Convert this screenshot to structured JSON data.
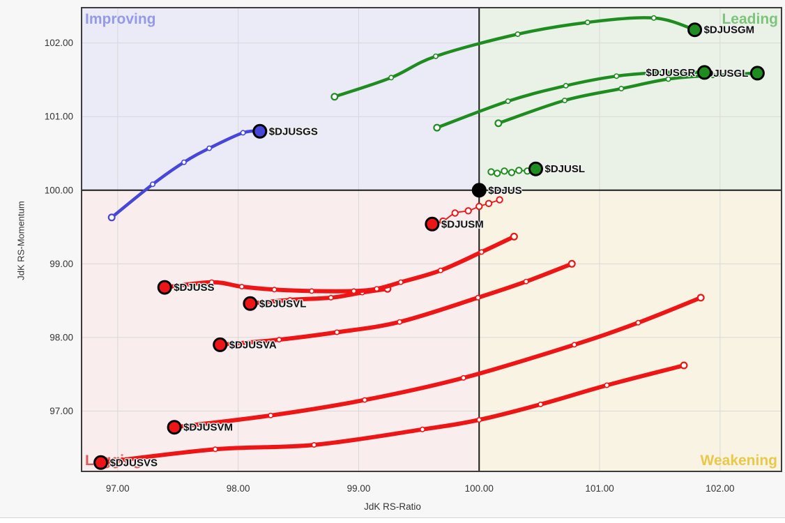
{
  "page": {
    "background": "#f7f7f7",
    "bottom_strip": "#ffffff"
  },
  "chart_data": {
    "type": "scatter",
    "chart_kind": "relative-rotation-graph",
    "x_axis": {
      "title": "JdK RS-Ratio",
      "range": [
        96.7,
        102.51
      ],
      "tick_values": [
        97,
        98,
        99,
        100,
        101,
        102
      ],
      "tick_labels": [
        "97.00",
        "98.00",
        "99.00",
        "100.00",
        "101.00",
        "102.00"
      ]
    },
    "y_axis": {
      "title": "JdK RS-Momentum",
      "range": [
        96.18,
        102.48
      ],
      "tick_values": [
        97,
        98,
        99,
        100,
        101,
        102
      ],
      "tick_labels": [
        "97.00",
        "98.00",
        "99.00",
        "100.00",
        "101.00",
        "102.00"
      ]
    },
    "center": {
      "x": 100,
      "y": 100
    },
    "grid_color": "#d8d8d8",
    "axis_text_color": "#333333",
    "border_color": "#3c3c3c",
    "crosshair_color": "#1a1a1a",
    "quadrants": {
      "improving": {
        "label": "Improving",
        "bg": "#ebebf8",
        "label_color": "#959ae6"
      },
      "leading": {
        "label": "Leading",
        "bg": "#eaf2e7",
        "label_color": "#7cc47c"
      },
      "lagging": {
        "label": "Lagging",
        "bg": "#f9eded",
        "label_color": "#de5a5a"
      },
      "weakening": {
        "label": "Weakening",
        "bg": "#f8f3e3",
        "label_color": "#e9c84b"
      }
    },
    "series": [
      {
        "symbol": "$DJUSGM",
        "color": "#1e8c1e",
        "line_width": 4.5,
        "tail_style": "solid",
        "label_side": "right",
        "points": [
          [
            98.8,
            101.27
          ],
          [
            99.27,
            101.53
          ],
          [
            99.64,
            101.82
          ],
          [
            100.32,
            102.12
          ],
          [
            100.9,
            102.28
          ],
          [
            101.45,
            102.34
          ],
          [
            101.79,
            102.18
          ]
        ]
      },
      {
        "symbol": "$DJUSGL",
        "color": "#1e8c1e",
        "line_width": 4.5,
        "tail_style": "solid",
        "label_side": "left",
        "points": [
          [
            100.16,
            100.91
          ],
          [
            100.71,
            101.22
          ],
          [
            101.18,
            101.38
          ],
          [
            101.57,
            101.51
          ],
          [
            101.94,
            101.56
          ],
          [
            102.31,
            101.59
          ]
        ]
      },
      {
        "symbol": "$DJUSGR",
        "color": "#1e8c1e",
        "line_width": 4.5,
        "tail_style": "solid",
        "label_side": "left",
        "points": [
          [
            99.65,
            100.85
          ],
          [
            100.24,
            101.21
          ],
          [
            100.72,
            101.42
          ],
          [
            101.14,
            101.55
          ],
          [
            101.52,
            101.6
          ],
          [
            101.87,
            101.6
          ]
        ]
      },
      {
        "symbol": "$DJUSGS",
        "color": "#4646d8",
        "line_width": 4.5,
        "tail_style": "solid",
        "label_side": "right",
        "points": [
          [
            96.95,
            99.63
          ],
          [
            97.29,
            100.08
          ],
          [
            97.55,
            100.38
          ],
          [
            97.76,
            100.57
          ],
          [
            98.04,
            100.78
          ],
          [
            98.18,
            100.8
          ]
        ]
      },
      {
        "symbol": "$DJUSL",
        "color": "#1e8c1e",
        "line_width": 2,
        "tail_style": "beads",
        "label_side": "right",
        "points": [
          [
            100.1,
            100.25
          ],
          [
            100.15,
            100.23
          ],
          [
            100.21,
            100.26
          ],
          [
            100.27,
            100.24
          ],
          [
            100.33,
            100.27
          ],
          [
            100.4,
            100.26
          ],
          [
            100.47,
            100.29
          ]
        ]
      },
      {
        "symbol": "$DJUSM",
        "color": "#ed1515",
        "line_width": 1.8,
        "tail_style": "beads",
        "label_side": "right",
        "points": [
          [
            100.17,
            99.87
          ],
          [
            100.08,
            99.82
          ],
          [
            100.0,
            99.78
          ],
          [
            99.91,
            99.72
          ],
          [
            99.8,
            99.69
          ],
          [
            99.7,
            99.58
          ],
          [
            99.61,
            99.54
          ]
        ]
      },
      {
        "symbol": "$DJUSVL",
        "color": "#ed1515",
        "line_width": 6,
        "tail_style": "solid",
        "label_side": "right",
        "points": [
          [
            99.24,
            98.66
          ],
          [
            99.03,
            98.61
          ],
          [
            98.77,
            98.54
          ],
          [
            98.43,
            98.51
          ],
          [
            98.1,
            98.46
          ]
        ]
      },
      {
        "symbol": "$DJUSS",
        "color": "#ed1515",
        "line_width": 6,
        "tail_style": "solid",
        "label_side": "right",
        "points": [
          [
            100.29,
            99.37
          ],
          [
            100.02,
            99.16
          ],
          [
            99.68,
            98.91
          ],
          [
            99.35,
            98.75
          ],
          [
            99.15,
            98.66
          ],
          [
            98.96,
            98.63
          ],
          [
            98.61,
            98.63
          ],
          [
            98.3,
            98.65
          ],
          [
            98.03,
            98.69
          ],
          [
            97.78,
            98.75
          ],
          [
            97.39,
            98.68
          ]
        ]
      },
      {
        "symbol": "$DJUSVA",
        "color": "#ed1515",
        "line_width": 6,
        "tail_style": "solid",
        "label_side": "right",
        "points": [
          [
            100.77,
            99.0
          ],
          [
            100.39,
            98.76
          ],
          [
            99.99,
            98.54
          ],
          [
            99.34,
            98.21
          ],
          [
            98.82,
            98.07
          ],
          [
            98.34,
            97.97
          ],
          [
            97.85,
            97.9
          ]
        ]
      },
      {
        "symbol": "$DJUSVM",
        "color": "#ed1515",
        "line_width": 6,
        "tail_style": "solid",
        "label_side": "right",
        "points": [
          [
            101.84,
            98.54
          ],
          [
            101.32,
            98.2
          ],
          [
            100.79,
            97.9
          ],
          [
            99.87,
            97.45
          ],
          [
            99.05,
            97.15
          ],
          [
            98.27,
            96.94
          ],
          [
            97.47,
            96.78
          ]
        ]
      },
      {
        "symbol": "$DJUSVS",
        "color": "#ed1515",
        "line_width": 6,
        "tail_style": "solid",
        "label_side": "right",
        "points": [
          [
            101.7,
            97.62
          ],
          [
            101.06,
            97.35
          ],
          [
            100.51,
            97.09
          ],
          [
            100.0,
            96.88
          ],
          [
            99.53,
            96.75
          ],
          [
            98.63,
            96.54
          ],
          [
            97.81,
            96.48
          ],
          [
            96.86,
            96.3
          ]
        ]
      },
      {
        "symbol": "$DJUS",
        "color": "#000000",
        "line_width": 0,
        "tail_style": "none",
        "label_side": "right",
        "points": [
          [
            100.0,
            100.0
          ]
        ]
      }
    ]
  }
}
